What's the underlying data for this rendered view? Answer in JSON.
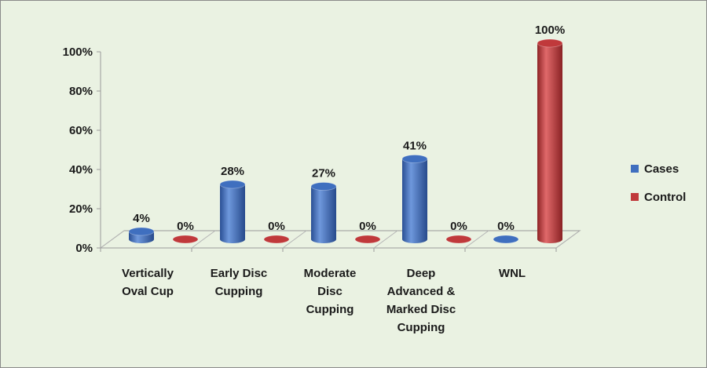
{
  "chart_data": {
    "type": "bar",
    "title": "",
    "xlabel": "",
    "ylabel": "",
    "categories": [
      [
        "Vertically",
        "Oval Cup"
      ],
      [
        "Early Disc",
        "Cupping"
      ],
      [
        "Moderate",
        "Disc",
        "Cupping"
      ],
      [
        "Deep",
        "Advanced &",
        "Marked Disc",
        "Cupping"
      ],
      [
        "WNL"
      ]
    ],
    "series": [
      {
        "name": "Cases",
        "values": [
          4,
          28,
          27,
          41,
          0
        ],
        "labels": [
          "4%",
          "28%",
          "27%",
          "41%",
          "0%"
        ],
        "color": "#3f6fbf"
      },
      {
        "name": "Control",
        "values": [
          0,
          0,
          0,
          0,
          100
        ],
        "labels": [
          "0%",
          "0%",
          "0%",
          "0%",
          "100%"
        ],
        "color": "#c0393b"
      }
    ],
    "ylim": [
      0,
      100
    ],
    "yticks": [
      "0%",
      "20%",
      "40%",
      "60%",
      "80%",
      "100%"
    ],
    "ytick_values": [
      0,
      20,
      40,
      60,
      80,
      100
    ],
    "legend_position": "right",
    "grid": false,
    "style": "3d-cylinder"
  }
}
